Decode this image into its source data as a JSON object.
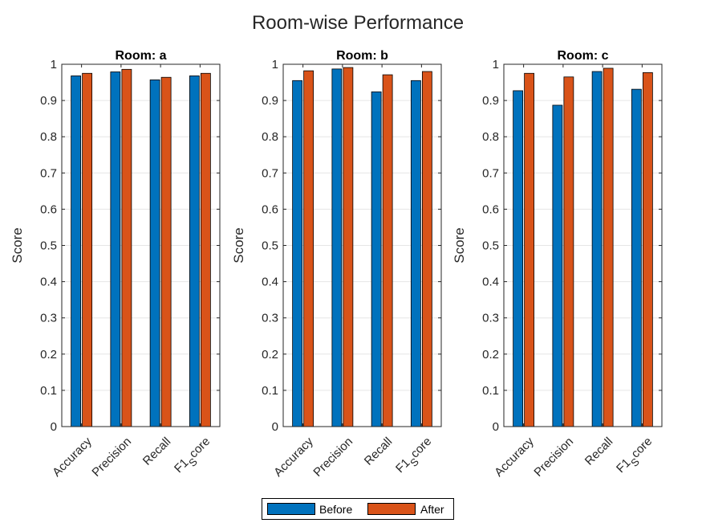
{
  "figure": {
    "title": "Room-wise Performance"
  },
  "colors": {
    "before": "#0072BD",
    "after": "#D95319",
    "grid": "#e6e6e6",
    "axis": "#262626"
  },
  "legend": {
    "before_label": "Before",
    "after_label": "After"
  },
  "chart_data": [
    {
      "type": "bar",
      "title": "Room: a",
      "ylabel": "Score",
      "xlabel": "",
      "ylim": [
        0,
        1
      ],
      "yticks": [
        "0",
        "0.1",
        "0.2",
        "0.3",
        "0.4",
        "0.5",
        "0.6",
        "0.7",
        "0.8",
        "0.9",
        "1"
      ],
      "grid": "y",
      "categories": [
        "Accuracy",
        "Precision",
        "Recall",
        "F1_Score"
      ],
      "series": [
        {
          "name": "Before",
          "values": [
            0.968,
            0.979,
            0.957,
            0.968
          ]
        },
        {
          "name": "After",
          "values": [
            0.975,
            0.986,
            0.964,
            0.975
          ]
        }
      ]
    },
    {
      "type": "bar",
      "title": "Room: b",
      "ylabel": "Score",
      "xlabel": "",
      "ylim": [
        0,
        1
      ],
      "yticks": [
        "0",
        "0.1",
        "0.2",
        "0.3",
        "0.4",
        "0.5",
        "0.6",
        "0.7",
        "0.8",
        "0.9",
        "1"
      ],
      "grid": "y",
      "categories": [
        "Accuracy",
        "Precision",
        "Recall",
        "F1_Score"
      ],
      "series": [
        {
          "name": "Before",
          "values": [
            0.955,
            0.987,
            0.924,
            0.955
          ]
        },
        {
          "name": "After",
          "values": [
            0.982,
            0.991,
            0.971,
            0.98
          ]
        }
      ]
    },
    {
      "type": "bar",
      "title": "Room: c",
      "ylabel": "Score",
      "xlabel": "",
      "ylim": [
        0,
        1
      ],
      "yticks": [
        "0",
        "0.1",
        "0.2",
        "0.3",
        "0.4",
        "0.5",
        "0.6",
        "0.7",
        "0.8",
        "0.9",
        "1"
      ],
      "grid": "y",
      "categories": [
        "Accuracy",
        "Precision",
        "Recall",
        "F1_Score"
      ],
      "series": [
        {
          "name": "Before",
          "values": [
            0.927,
            0.887,
            0.98,
            0.931
          ]
        },
        {
          "name": "After",
          "values": [
            0.975,
            0.965,
            0.989,
            0.977
          ]
        }
      ]
    }
  ]
}
